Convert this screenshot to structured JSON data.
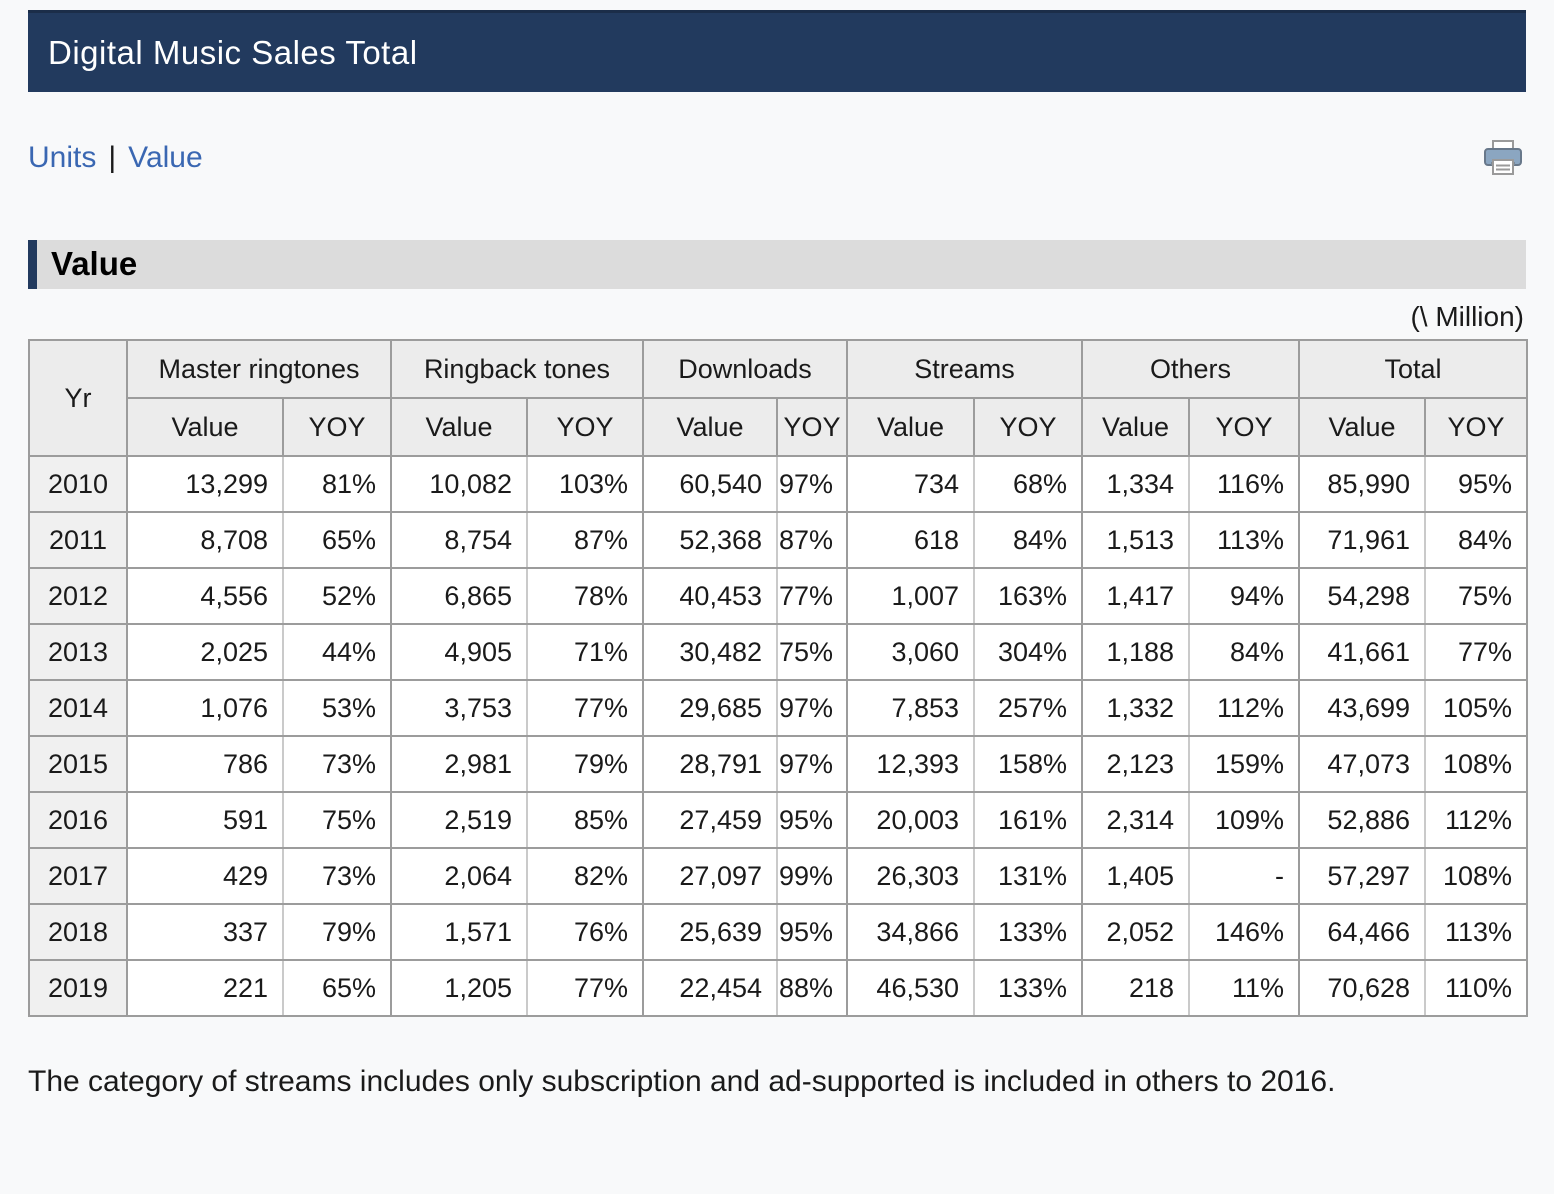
{
  "header": {
    "title": "Digital Music Sales Total"
  },
  "nav": {
    "units_label": "Units",
    "separator": "|",
    "value_label": "Value"
  },
  "section": {
    "title": "Value",
    "unit_note": "(\\ Million)"
  },
  "table": {
    "corner_header": "Yr",
    "groups": [
      "Master ringtones",
      "Ringback tones",
      "Downloads",
      "Streams",
      "Others",
      "Total"
    ],
    "sub_headers": [
      "Value",
      "YOY"
    ],
    "rows": [
      {
        "year": "2010",
        "values": [
          "13,299",
          "81%",
          "10,082",
          "103%",
          "60,540",
          "97%",
          "734",
          "68%",
          "1,334",
          "116%",
          "85,990",
          "95%"
        ]
      },
      {
        "year": "2011",
        "values": [
          "8,708",
          "65%",
          "8,754",
          "87%",
          "52,368",
          "87%",
          "618",
          "84%",
          "1,513",
          "113%",
          "71,961",
          "84%"
        ]
      },
      {
        "year": "2012",
        "values": [
          "4,556",
          "52%",
          "6,865",
          "78%",
          "40,453",
          "77%",
          "1,007",
          "163%",
          "1,417",
          "94%",
          "54,298",
          "75%"
        ]
      },
      {
        "year": "2013",
        "values": [
          "2,025",
          "44%",
          "4,905",
          "71%",
          "30,482",
          "75%",
          "3,060",
          "304%",
          "1,188",
          "84%",
          "41,661",
          "77%"
        ]
      },
      {
        "year": "2014",
        "values": [
          "1,076",
          "53%",
          "3,753",
          "77%",
          "29,685",
          "97%",
          "7,853",
          "257%",
          "1,332",
          "112%",
          "43,699",
          "105%"
        ]
      },
      {
        "year": "2015",
        "values": [
          "786",
          "73%",
          "2,981",
          "79%",
          "28,791",
          "97%",
          "12,393",
          "158%",
          "2,123",
          "159%",
          "47,073",
          "108%"
        ]
      },
      {
        "year": "2016",
        "values": [
          "591",
          "75%",
          "2,519",
          "85%",
          "27,459",
          "95%",
          "20,003",
          "161%",
          "2,314",
          "109%",
          "52,886",
          "112%"
        ]
      },
      {
        "year": "2017",
        "values": [
          "429",
          "73%",
          "2,064",
          "82%",
          "27,097",
          "99%",
          "26,303",
          "131%",
          "1,405",
          "-",
          "57,297",
          "108%"
        ]
      },
      {
        "year": "2018",
        "values": [
          "337",
          "79%",
          "1,571",
          "76%",
          "25,639",
          "95%",
          "34,866",
          "133%",
          "2,052",
          "146%",
          "64,466",
          "113%"
        ]
      },
      {
        "year": "2019",
        "values": [
          "221",
          "65%",
          "1,205",
          "77%",
          "22,454",
          "88%",
          "46,530",
          "133%",
          "218",
          "11%",
          "70,628",
          "110%"
        ]
      }
    ]
  },
  "footnote": "The category of streams includes only subscription and ad-supported is included in others to 2016.",
  "colors": {
    "header_bar": "#223a5e",
    "link_blue": "#3a67b2",
    "section_bg": "#dcdcdc",
    "table_header_bg": "#ececec",
    "year_col_bg": "#f0f0f0",
    "border_dark": "#9c9c9c",
    "border_light": "#cacaca"
  }
}
